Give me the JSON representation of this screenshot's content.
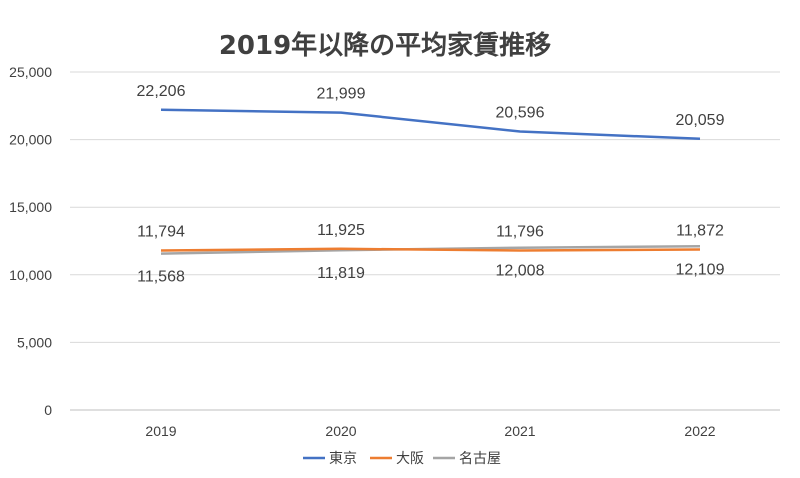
{
  "chart_data": {
    "type": "line",
    "title": "2019年以降の平均家賃推移",
    "xlabel": "",
    "ylabel": "",
    "categories": [
      "2019",
      "2020",
      "2021",
      "2022"
    ],
    "ylim": [
      0,
      25000
    ],
    "yticks": [
      "0",
      "5,000",
      "10,000",
      "15,000",
      "20,000",
      "25,000"
    ],
    "grid": true,
    "legend_position": "bottom",
    "series": [
      {
        "name": "東京",
        "color": "#4472C4",
        "values": [
          22206,
          21999,
          20596,
          20059
        ],
        "labels": [
          "22,206",
          "21,999",
          "20,596",
          "20,059"
        ],
        "label_position": "above"
      },
      {
        "name": "大阪",
        "color": "#ED7D31",
        "values": [
          11794,
          11925,
          11796,
          11872
        ],
        "labels": [
          "11,794",
          "11,925",
          "11,796",
          "11,872"
        ],
        "label_position": "above"
      },
      {
        "name": "名古屋",
        "color": "#A5A5A5",
        "values": [
          11568,
          11819,
          12008,
          12109
        ],
        "labels": [
          "11,568",
          "11,819",
          "12,008",
          "12,109"
        ],
        "label_position": "below"
      }
    ]
  }
}
